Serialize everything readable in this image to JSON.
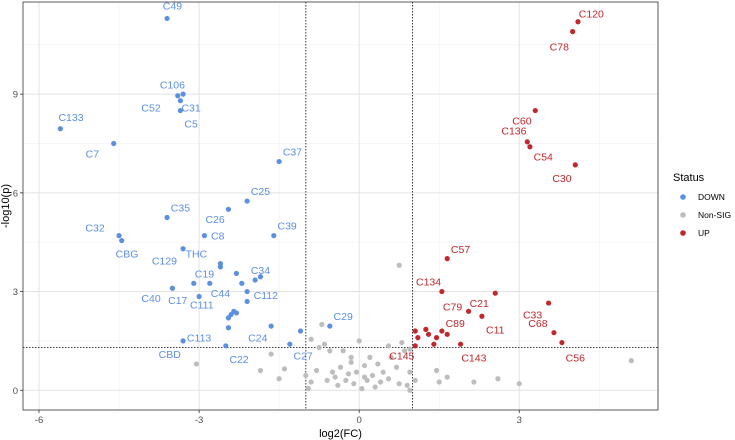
{
  "chart_data": {
    "type": "scatter",
    "xlabel": "log2(FC)",
    "ylabel": "-log10(p)",
    "xlim": [
      -6.3,
      5.6
    ],
    "ylim": [
      -0.6,
      11.8
    ],
    "x_ticks": [
      -6,
      -3,
      0,
      3
    ],
    "y_ticks": [
      0,
      3,
      6,
      9
    ],
    "x_tick_labels": [
      "-6",
      "-3",
      "0",
      "3"
    ],
    "y_tick_labels": [
      "0",
      "3",
      "6",
      "9"
    ],
    "grid": true,
    "thresholds": {
      "fc_low": -1,
      "fc_high": 1,
      "p": 1.3
    },
    "legend": {
      "title": "Status",
      "position": "right",
      "entries": [
        {
          "label": "DOWN",
          "color": "#5b8fe0"
        },
        {
          "label": "Non-SIG",
          "color": "#bdbdbd"
        },
        {
          "label": "UP",
          "color": "#c1272d"
        }
      ]
    },
    "series": [
      {
        "name": "DOWN",
        "color": "#5b8fe0",
        "points": [
          {
            "x": -3.6,
            "y": 11.3,
            "label": "C49",
            "lx": 0.1,
            "ly": 0.4
          },
          {
            "x": -3.3,
            "y": 9.0,
            "label": "C106",
            "lx": -0.2,
            "ly": 0.3
          },
          {
            "x": -3.4,
            "y": 8.95,
            "label": "C52",
            "lx": -0.5,
            "ly": -0.35
          },
          {
            "x": -3.35,
            "y": 8.8,
            "label": "C31",
            "lx": 0.2,
            "ly": -0.2
          },
          {
            "x": -3.35,
            "y": 8.5,
            "label": "C5",
            "lx": 0.2,
            "ly": -0.4
          },
          {
            "x": -5.6,
            "y": 7.95,
            "label": "C133",
            "lx": 0.2,
            "ly": 0.35
          },
          {
            "x": -4.6,
            "y": 7.5,
            "label": "C7",
            "lx": -0.4,
            "ly": -0.3
          },
          {
            "x": -1.5,
            "y": 6.95,
            "label": "C37",
            "lx": 0.25,
            "ly": 0.3
          },
          {
            "x": -2.1,
            "y": 5.75,
            "label": "C25",
            "lx": 0.25,
            "ly": 0.3
          },
          {
            "x": -2.45,
            "y": 5.5,
            "label": "C26",
            "lx": -0.25,
            "ly": -0.3
          },
          {
            "x": -3.6,
            "y": 5.25,
            "label": "C35",
            "lx": 0.25,
            "ly": 0.3
          },
          {
            "x": -2.9,
            "y": 4.7,
            "label": "C8",
            "lx": 0.25,
            "ly": 0.0
          },
          {
            "x": -1.6,
            "y": 4.7,
            "label": "C39",
            "lx": 0.25,
            "ly": 0.3
          },
          {
            "x": -4.5,
            "y": 4.7,
            "label": "C32",
            "lx": -0.45,
            "ly": 0.25
          },
          {
            "x": -4.45,
            "y": 4.55,
            "label": "CBG",
            "lx": 0.1,
            "ly": -0.4
          },
          {
            "x": -3.3,
            "y": 4.3,
            "label": "C129",
            "lx": -0.35,
            "ly": -0.35
          },
          {
            "x": -2.6,
            "y": 3.85,
            "label": "THC",
            "lx": -0.45,
            "ly": 0.3
          },
          {
            "x": -2.6,
            "y": 3.75,
            "label": "C34",
            "lx": 0.75,
            "ly": -0.1
          },
          {
            "x": -1.85,
            "y": 3.45,
            "label": "",
            "lx": 0,
            "ly": 0
          },
          {
            "x": -1.95,
            "y": 3.35,
            "label": "",
            "lx": 0,
            "ly": 0
          },
          {
            "x": -2.2,
            "y": 3.25,
            "label": "",
            "lx": 0,
            "ly": 0
          },
          {
            "x": -2.3,
            "y": 3.55,
            "label": "",
            "lx": 0,
            "ly": 0
          },
          {
            "x": -3.1,
            "y": 3.25,
            "label": "C19",
            "lx": 0.2,
            "ly": 0.3
          },
          {
            "x": -2.8,
            "y": 3.25,
            "label": "C44",
            "lx": 0.2,
            "ly": -0.3
          },
          {
            "x": -3.5,
            "y": 3.1,
            "label": "C40",
            "lx": -0.4,
            "ly": -0.3
          },
          {
            "x": -3.0,
            "y": 2.85,
            "label": "C17",
            "lx": -0.4,
            "ly": -0.1
          },
          {
            "x": -2.1,
            "y": 3.0,
            "label": "C112",
            "lx": 0.35,
            "ly": -0.1
          },
          {
            "x": -2.1,
            "y": 2.7,
            "label": "",
            "lx": 0,
            "ly": 0
          },
          {
            "x": -2.35,
            "y": 2.4,
            "label": "",
            "lx": 0,
            "ly": 0
          },
          {
            "x": -2.4,
            "y": 2.3,
            "label": "C111",
            "lx": -0.55,
            "ly": 0.3
          },
          {
            "x": -2.45,
            "y": 2.2,
            "label": "",
            "lx": 0,
            "ly": 0
          },
          {
            "x": -2.3,
            "y": 2.35,
            "label": "",
            "lx": 0,
            "ly": 0
          },
          {
            "x": -1.65,
            "y": 1.95,
            "label": "C24",
            "lx": -0.25,
            "ly": -0.35
          },
          {
            "x": -1.1,
            "y": 1.8,
            "label": "",
            "lx": 0,
            "ly": 0
          },
          {
            "x": -0.55,
            "y": 1.95,
            "label": "C29",
            "lx": 0.25,
            "ly": 0.3
          },
          {
            "x": -2.45,
            "y": 1.9,
            "label": "C113",
            "lx": -0.55,
            "ly": -0.3
          },
          {
            "x": -3.3,
            "y": 1.5,
            "label": "CBD",
            "lx": -0.25,
            "ly": -0.4
          },
          {
            "x": -2.5,
            "y": 1.35,
            "label": "C22",
            "lx": 0.25,
            "ly": -0.4
          },
          {
            "x": -1.3,
            "y": 1.4,
            "label": "C27",
            "lx": 0.25,
            "ly": -0.35
          }
        ]
      },
      {
        "name": "Non-SIG",
        "color": "#bdbdbd",
        "points": [
          {
            "x": 0.75,
            "y": 3.8
          },
          {
            "x": -0.7,
            "y": 2.0
          },
          {
            "x": -0.9,
            "y": 1.55
          },
          {
            "x": -0.65,
            "y": 1.4
          },
          {
            "x": -0.75,
            "y": 1.3
          },
          {
            "x": -0.55,
            "y": 1.2
          },
          {
            "x": -1.65,
            "y": 1.1
          },
          {
            "x": -1.4,
            "y": 0.65
          },
          {
            "x": -1.5,
            "y": 0.35
          },
          {
            "x": -3.05,
            "y": 0.8
          },
          {
            "x": -1.85,
            "y": 0.6
          },
          {
            "x": 0.0,
            "y": 1.5
          },
          {
            "x": -0.3,
            "y": 1.2
          },
          {
            "x": 0.55,
            "y": 1.35
          },
          {
            "x": 0.85,
            "y": 1.2
          },
          {
            "x": 0.6,
            "y": 1.0
          },
          {
            "x": 0.2,
            "y": 1.0
          },
          {
            "x": -0.15,
            "y": 0.85
          },
          {
            "x": -0.35,
            "y": 0.7
          },
          {
            "x": 0.1,
            "y": 0.75
          },
          {
            "x": 0.45,
            "y": 0.55
          },
          {
            "x": -0.05,
            "y": 0.55
          },
          {
            "x": -0.2,
            "y": 0.5
          },
          {
            "x": 0.25,
            "y": 0.45
          },
          {
            "x": -0.5,
            "y": 0.55
          },
          {
            "x": 0.7,
            "y": 0.7
          },
          {
            "x": 0.95,
            "y": 0.55
          },
          {
            "x": 0.15,
            "y": 0.3
          },
          {
            "x": -0.25,
            "y": 0.3
          },
          {
            "x": 0.4,
            "y": 0.25
          },
          {
            "x": -0.1,
            "y": 0.2
          },
          {
            "x": 0.55,
            "y": 0.35
          },
          {
            "x": -0.6,
            "y": 0.3
          },
          {
            "x": 0.3,
            "y": 0.1
          },
          {
            "x": -0.4,
            "y": 0.15
          },
          {
            "x": 0.05,
            "y": 0.05
          },
          {
            "x": 0.75,
            "y": 0.2
          },
          {
            "x": 1.05,
            "y": 0.3
          },
          {
            "x": 0.9,
            "y": 0.15
          },
          {
            "x": -0.8,
            "y": 0.6
          },
          {
            "x": -0.9,
            "y": 0.25
          },
          {
            "x": -1.0,
            "y": 0.45
          },
          {
            "x": -0.95,
            "y": 0.05
          },
          {
            "x": 0.95,
            "y": 0.0
          },
          {
            "x": 1.45,
            "y": 0.6
          },
          {
            "x": 1.5,
            "y": 0.25
          },
          {
            "x": 1.65,
            "y": 0.4
          },
          {
            "x": 2.15,
            "y": 0.25
          },
          {
            "x": 2.6,
            "y": 0.35
          },
          {
            "x": 3.0,
            "y": 0.2
          },
          {
            "x": 5.1,
            "y": 0.9
          },
          {
            "x": 0.35,
            "y": 0.8
          },
          {
            "x": -0.15,
            "y": 1.0
          },
          {
            "x": 0.8,
            "y": 1.45
          },
          {
            "x": 0.95,
            "y": 1.25
          },
          {
            "x": 0.1,
            "y": 0.4
          },
          {
            "x": -0.45,
            "y": 0.4
          }
        ]
      },
      {
        "name": "UP",
        "color": "#c1272d",
        "points": [
          {
            "x": 4.1,
            "y": 11.2,
            "label": "C120",
            "lx": 0.25,
            "ly": 0.25
          },
          {
            "x": 4.0,
            "y": 10.9,
            "label": "C78",
            "lx": -0.25,
            "ly": -0.45
          },
          {
            "x": 3.3,
            "y": 8.5,
            "label": "C60",
            "lx": -0.25,
            "ly": -0.3
          },
          {
            "x": 3.15,
            "y": 7.55,
            "label": "C136",
            "lx": -0.25,
            "ly": 0.35
          },
          {
            "x": 3.2,
            "y": 7.4,
            "label": "C54",
            "lx": 0.25,
            "ly": -0.3
          },
          {
            "x": 4.05,
            "y": 6.85,
            "label": "C30",
            "lx": -0.25,
            "ly": -0.4
          },
          {
            "x": 1.65,
            "y": 4.0,
            "label": "C57",
            "lx": 0.25,
            "ly": 0.3
          },
          {
            "x": 1.55,
            "y": 3.0,
            "label": "C134",
            "lx": -0.25,
            "ly": 0.3
          },
          {
            "x": 2.55,
            "y": 2.95,
            "label": "C21",
            "lx": -0.3,
            "ly": -0.3
          },
          {
            "x": 3.55,
            "y": 2.65,
            "label": "C33",
            "lx": -0.3,
            "ly": -0.35
          },
          {
            "x": 2.05,
            "y": 2.4,
            "label": "C79",
            "lx": -0.3,
            "ly": 0.15
          },
          {
            "x": 2.3,
            "y": 2.25,
            "label": "C11",
            "lx": 0.25,
            "ly": -0.4
          },
          {
            "x": 1.55,
            "y": 1.8,
            "label": "C89",
            "lx": 0.25,
            "ly": 0.25
          },
          {
            "x": 1.45,
            "y": 1.6,
            "label": "",
            "lx": 0,
            "ly": 0
          },
          {
            "x": 1.65,
            "y": 1.7,
            "label": "",
            "lx": 0,
            "ly": 0
          },
          {
            "x": 3.65,
            "y": 1.75,
            "label": "C68",
            "lx": -0.3,
            "ly": 0.3
          },
          {
            "x": 3.8,
            "y": 1.45,
            "label": "C56",
            "lx": 0.25,
            "ly": -0.45
          },
          {
            "x": 1.9,
            "y": 1.4,
            "label": "C143",
            "lx": 0.25,
            "ly": -0.4
          },
          {
            "x": 1.05,
            "y": 1.8,
            "label": "",
            "lx": 0,
            "ly": 0
          },
          {
            "x": 1.1,
            "y": 1.6,
            "label": "",
            "lx": 0,
            "ly": 0
          },
          {
            "x": 1.25,
            "y": 1.85,
            "label": "",
            "lx": 0,
            "ly": 0
          },
          {
            "x": 1.3,
            "y": 1.7,
            "label": "",
            "lx": 0,
            "ly": 0
          },
          {
            "x": 1.05,
            "y": 1.35,
            "label": "C145",
            "lx": -0.25,
            "ly": -0.3
          },
          {
            "x": 1.4,
            "y": 1.4,
            "label": "",
            "lx": 0,
            "ly": 0
          }
        ]
      }
    ]
  }
}
